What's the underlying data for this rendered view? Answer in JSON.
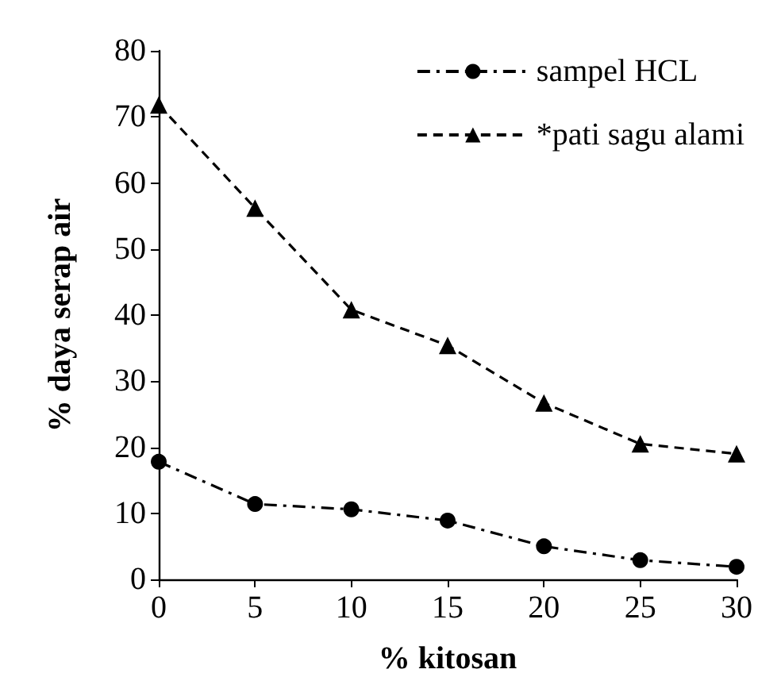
{
  "chart_data": {
    "type": "line",
    "xlabel": "% kitosan",
    "ylabel": "% daya serap air",
    "x": [
      0,
      5,
      10,
      15,
      20,
      25,
      30
    ],
    "series": [
      {
        "name": "sampel HCL",
        "color": "#000000",
        "marker": "circle",
        "line_style": "dashdot",
        "values": [
          17.8,
          11.4,
          10.6,
          8.9,
          5.0,
          2.9,
          1.9
        ]
      },
      {
        "name": "*pati sagu alami",
        "color": "#000000",
        "marker": "triangle",
        "line_style": "dashed",
        "values": [
          71.8,
          56.2,
          40.8,
          35.4,
          26.7,
          20.5,
          19.0
        ]
      }
    ],
    "xlim": [
      0,
      30
    ],
    "xticks": [
      0,
      5,
      10,
      15,
      20,
      25,
      30
    ],
    "ylim": [
      0,
      80
    ],
    "yticks": [
      0,
      10,
      20,
      30,
      40,
      50,
      60,
      70,
      80
    ],
    "grid": false,
    "legend": "top right"
  }
}
